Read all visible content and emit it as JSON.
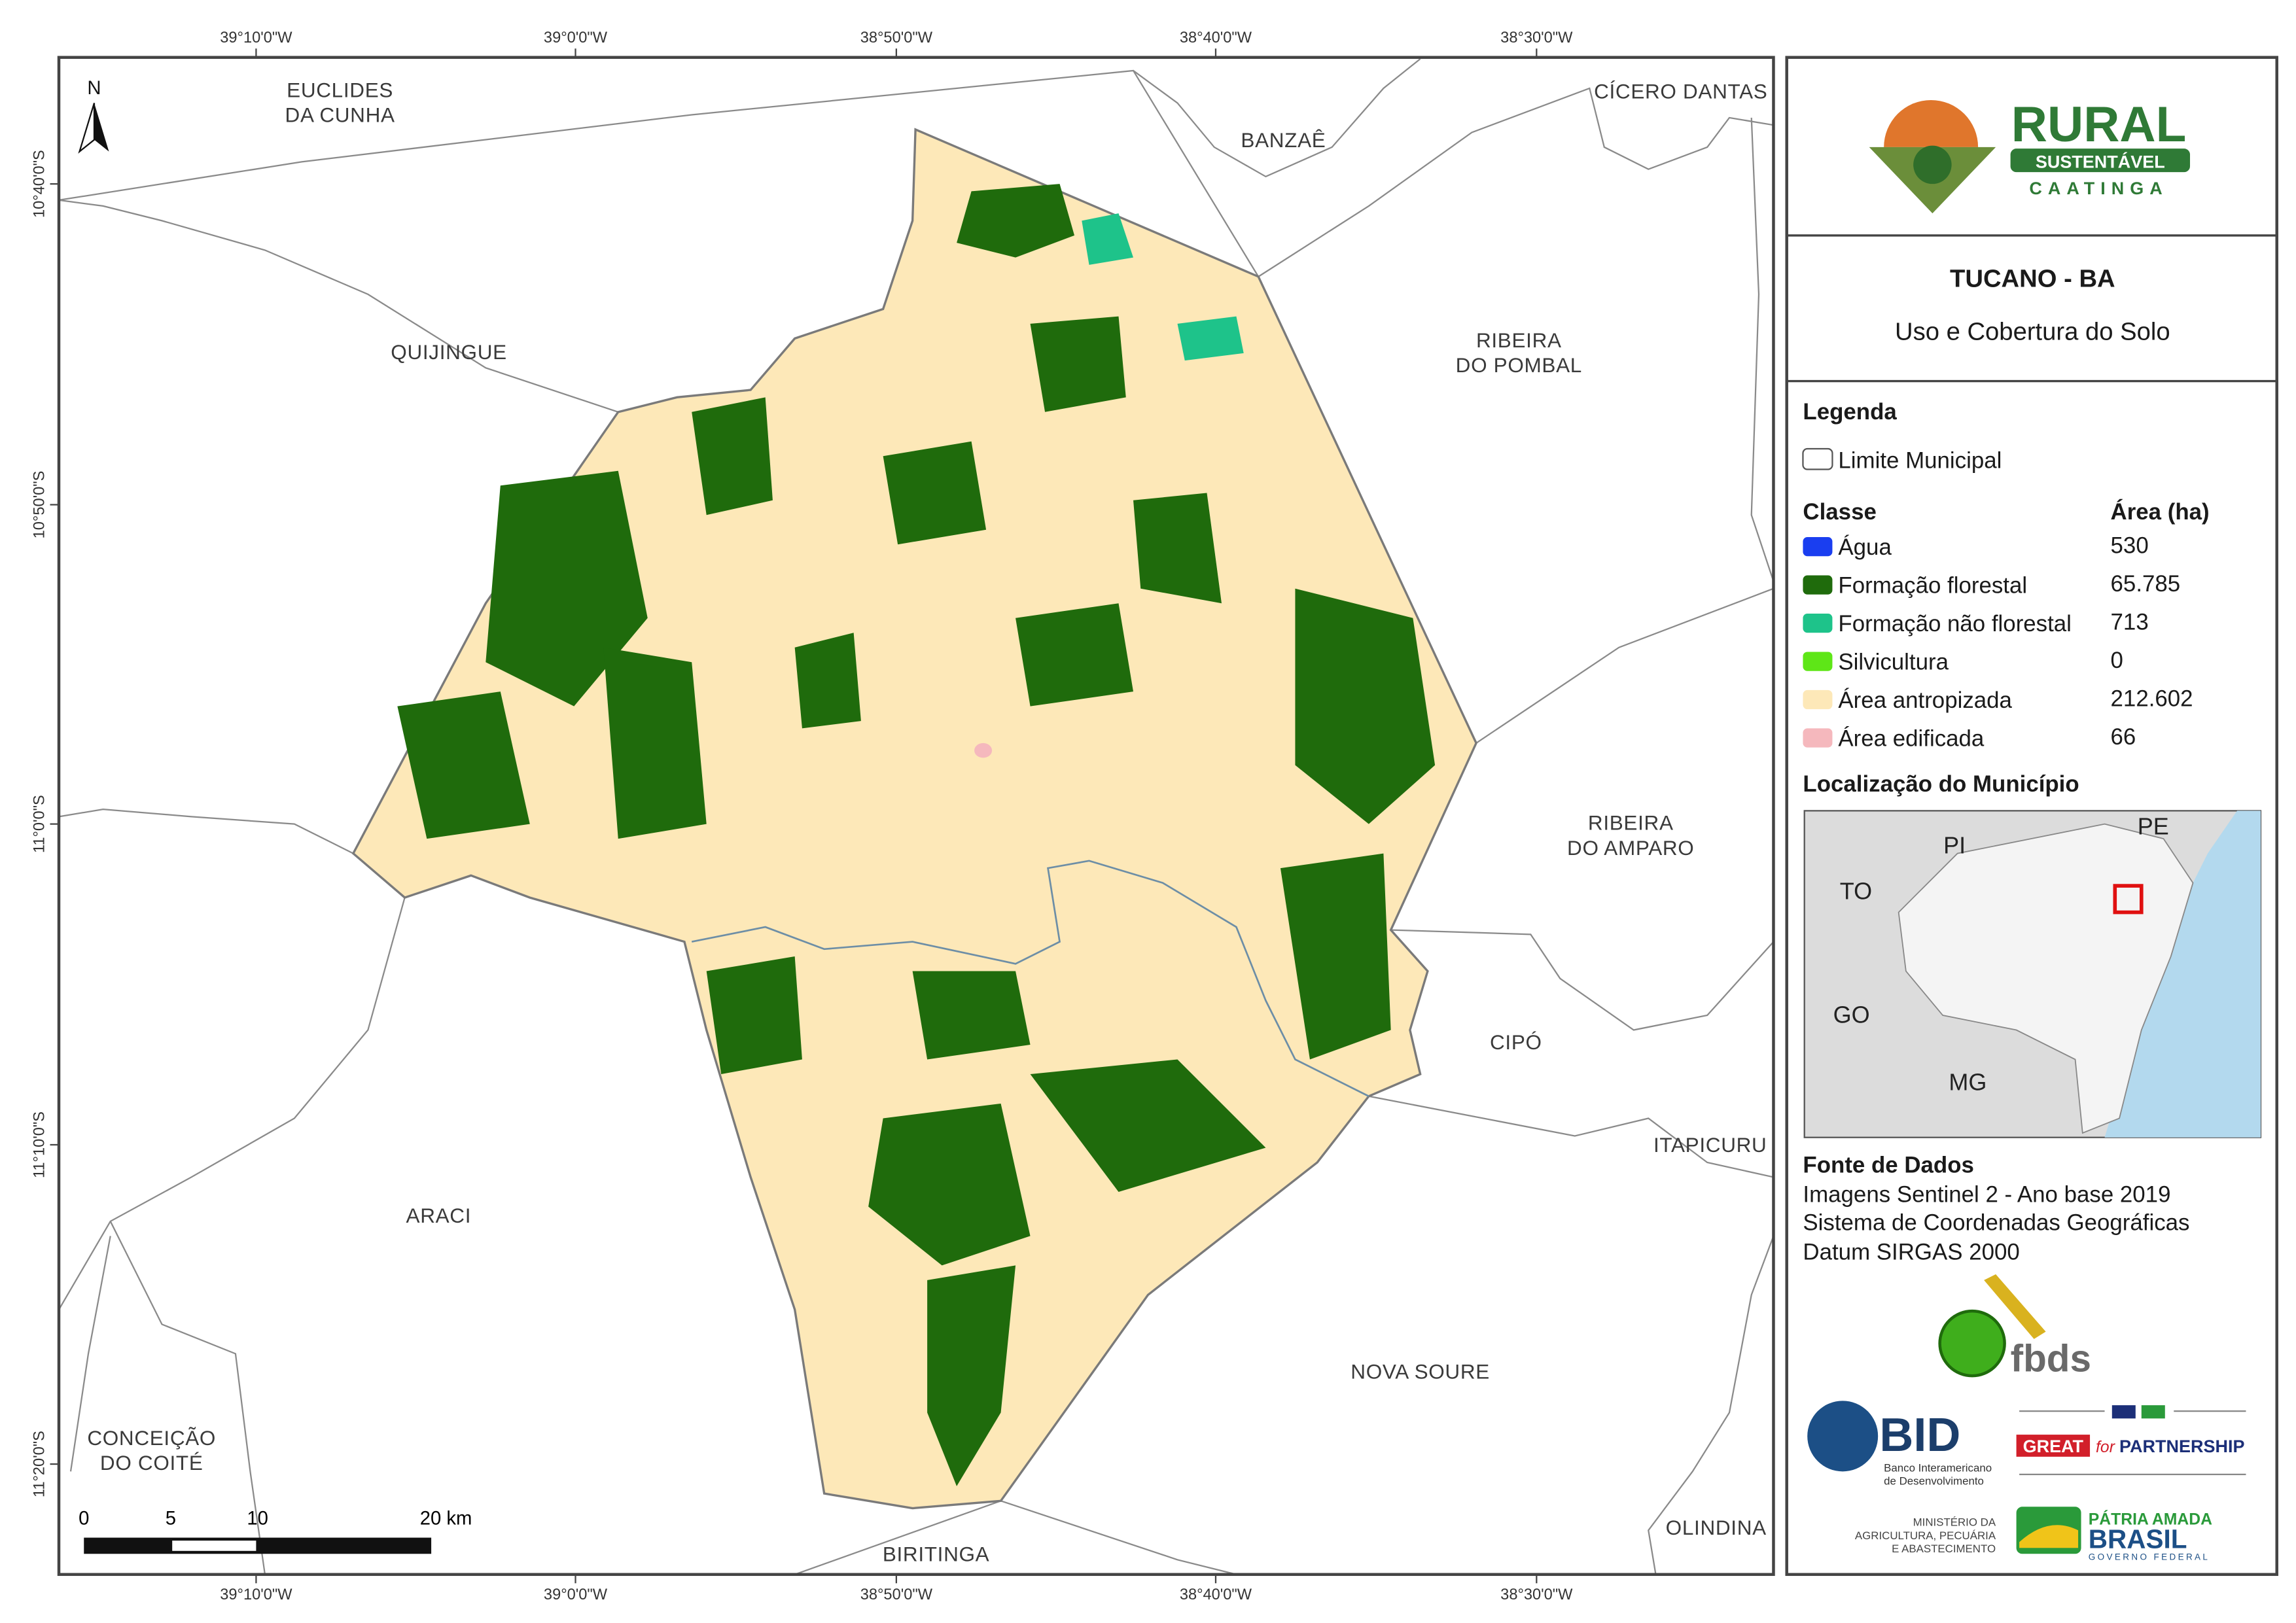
{
  "map": {
    "longitude_labels": [
      "39°10'0\"W",
      "39°0'0\"W",
      "38°50'0\"W",
      "38°40'0\"W",
      "38°30'0\"W"
    ],
    "latitude_labels": [
      "10°40'0\"S",
      "10°50'0\"S",
      "11°0'0\"S",
      "11°10'0\"S",
      "11°20'0\"S"
    ],
    "north": "N",
    "places": {
      "euclides": [
        "EUCLIDES",
        "DA CUNHA"
      ],
      "banzae": "BANZAÊ",
      "cicero_dantas": "CÍCERO DANTAS",
      "quijingue": "QUIJINGUE",
      "ribeira_pombal": [
        "RIBEIRA",
        "DO POMBAL"
      ],
      "ribeira_amparo": [
        "RIBEIRA",
        "DO AMPARO"
      ],
      "cipo": "CIPÓ",
      "itapicuru": "ITAPICURU",
      "araci": "ARACI",
      "nova_soure": "NOVA SOURE",
      "conceicao": [
        "CONCEIÇÃO",
        "DO COITÉ"
      ],
      "biritinga": "BIRITINGA",
      "olindina": "OLINDINA"
    },
    "scale_bar": [
      "0",
      "5",
      "10",
      "20 km"
    ]
  },
  "panel": {
    "logo": [
      "RURAL",
      "SUSTENTÁVEL",
      "CAATINGA"
    ],
    "title": "TUCANO - BA",
    "subtitle": "Uso e Cobertura do Solo",
    "legend": {
      "title": "Legenda",
      "boundary": "Limite Municipal",
      "class_header": "Classe",
      "area_header": "Área (ha)",
      "rows": [
        {
          "name": "Água",
          "area": "530",
          "color": "#1a3ef0"
        },
        {
          "name": "Formação florestal",
          "area": "65.785",
          "color": "#1f6b0c"
        },
        {
          "name": "Formação não florestal",
          "area": "713",
          "color": "#1ec38a"
        },
        {
          "name": "Silvicultura",
          "area": "0",
          "color": "#5ee617"
        },
        {
          "name": "Área antropizada",
          "area": "212.602",
          "color": "#fde8b8"
        },
        {
          "name": "Área edificada",
          "area": "66",
          "color": "#f5b8bd"
        }
      ]
    },
    "location": {
      "title": "Localização do Município",
      "states": [
        "PI",
        "PE",
        "TO",
        "GO",
        "MG"
      ]
    },
    "sources": {
      "title": "Fonte de Dados",
      "lines": [
        "Imagens Sentinel 2 - Ano base 2019",
        "Sistema de Coordenadas Geográficas",
        "Datum SIRGAS 2000"
      ]
    },
    "partners": {
      "fbds": "fbds",
      "bid": [
        "BID",
        "Banco Interamericano",
        "de Desenvolvimento"
      ],
      "great": [
        "GREAT",
        "for",
        "PARTNERSHIP"
      ],
      "ministry": [
        "MINISTÉRIO DA",
        "AGRICULTURA, PECUÁRIA",
        "E ABASTECIMENTO"
      ],
      "brasil": [
        "PÁTRIA AMADA",
        "BRASIL",
        "GOVERNO FEDERAL"
      ]
    }
  }
}
